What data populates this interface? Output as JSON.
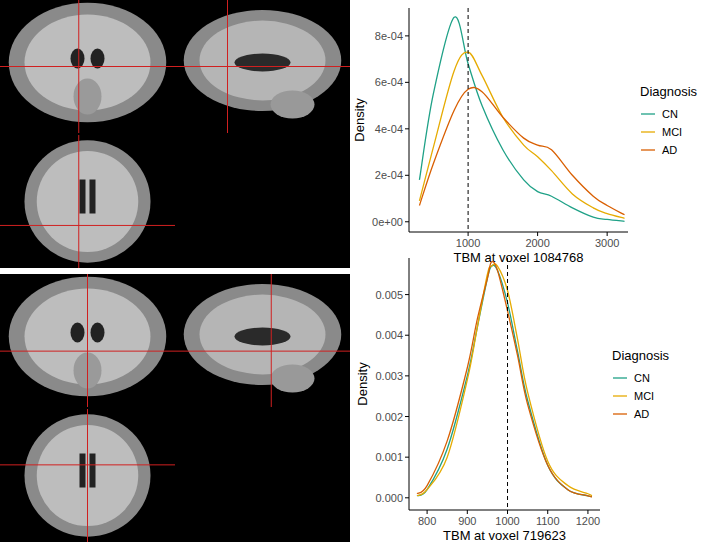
{
  "chart_data": [
    {
      "type": "line",
      "x_label": "TBM at voxel 1084768",
      "y_label": "Density",
      "legend_title": "Diagnosis",
      "legend": "right",
      "grid": false,
      "x": [
        300,
        500,
        800,
        1000,
        1200,
        1500,
        1800,
        2000,
        2200,
        2500,
        2800,
        3000,
        3250
      ],
      "series": [
        {
          "name": "CN",
          "color": "#1fa187",
          "values": [
            0.00018,
            0.00055,
            0.00088,
            0.00068,
            0.0005,
            0.00031,
            0.00018,
            0.00013,
            0.00011,
            6e-05,
            2e-05,
            1e-05,
            2e-06
          ]
        },
        {
          "name": "MCI",
          "color": "#e6ab02",
          "values": [
            9e-05,
            0.00032,
            0.00065,
            0.00073,
            0.00063,
            0.00045,
            0.00033,
            0.00028,
            0.00022,
            0.00012,
            6e-05,
            3.5e-05,
            1.5e-05
          ]
        },
        {
          "name": "AD",
          "color": "#d95f02",
          "values": [
            7e-05,
            0.00025,
            0.00048,
            0.00057,
            0.00056,
            0.00045,
            0.00036,
            0.00033,
            0.00031,
            0.0002,
            0.00011,
            7e-05,
            3e-05
          ]
        }
      ],
      "xlim": [
        150,
        3300
      ],
      "ylim": [
        -4.4e-05,
        0.00092
      ],
      "xticks": [
        1000,
        2000,
        3000
      ],
      "yticks": [
        {
          "value": 0,
          "label": "0e+00"
        },
        {
          "value": 0.0002,
          "label": "2e-04"
        },
        {
          "value": 0.0004,
          "label": "4e-04"
        },
        {
          "value": 0.0006,
          "label": "6e-04"
        },
        {
          "value": 0.0008,
          "label": "8e-04"
        }
      ],
      "annotations": [
        {
          "x": 1000,
          "line_style": "dashed"
        }
      ]
    },
    {
      "type": "line",
      "x_label": "TBM at voxel 719623",
      "y_label": "Density",
      "legend_title": "Diagnosis",
      "legend": "right",
      "grid": false,
      "x": [
        775,
        800,
        850,
        900,
        925,
        950,
        960,
        975,
        1000,
        1025,
        1050,
        1100,
        1150,
        1200,
        1210
      ],
      "series": [
        {
          "name": "CN",
          "color": "#1fa187",
          "values": [
            5e-05,
            0.0002,
            0.0012,
            0.003,
            0.0042,
            0.0054,
            0.0057,
            0.0056,
            0.0048,
            0.0036,
            0.0024,
            0.0008,
            0.0002,
            5e-05,
            3e-05
          ]
        },
        {
          "name": "MCI",
          "color": "#e6ab02",
          "values": [
            5e-05,
            0.0002,
            0.001,
            0.0029,
            0.0042,
            0.0055,
            0.0057,
            0.0057,
            0.0051,
            0.0039,
            0.0026,
            0.0009,
            0.0003,
            0.0001,
            5e-05
          ]
        },
        {
          "name": "AD",
          "color": "#d95f02",
          "values": [
            0.0001,
            0.0003,
            0.0014,
            0.0032,
            0.0044,
            0.0054,
            0.0058,
            0.0056,
            0.0046,
            0.0035,
            0.0023,
            0.0008,
            0.0002,
            5e-05,
            2e-05
          ]
        }
      ],
      "xlim": [
        755,
        1230
      ],
      "ylim": [
        -0.0003,
        0.0059
      ],
      "xticks": [
        800,
        900,
        1000,
        1100,
        1200
      ],
      "yticks": [
        {
          "value": 0,
          "label": "0.000"
        },
        {
          "value": 0.001,
          "label": "0.001"
        },
        {
          "value": 0.002,
          "label": "0.002"
        },
        {
          "value": 0.003,
          "label": "0.003"
        },
        {
          "value": 0.004,
          "label": "0.004"
        },
        {
          "value": 0.005,
          "label": "0.005"
        }
      ],
      "annotations": [
        {
          "x": 1000,
          "line_style": "dashed"
        }
      ]
    }
  ]
}
